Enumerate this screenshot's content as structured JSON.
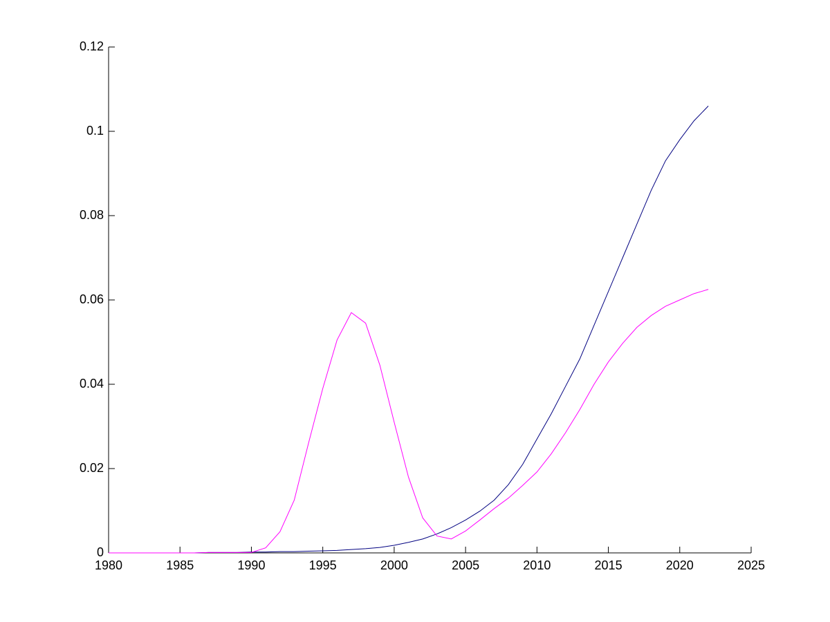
{
  "chart_data": {
    "type": "line",
    "x": [
      1980,
      1981,
      1982,
      1983,
      1984,
      1985,
      1986,
      1987,
      1988,
      1989,
      1990,
      1991,
      1992,
      1993,
      1994,
      1995,
      1996,
      1997,
      1998,
      1999,
      2000,
      2001,
      2002,
      2003,
      2004,
      2005,
      2006,
      2007,
      2008,
      2009,
      2010,
      2011,
      2012,
      2013,
      2014,
      2015,
      2016,
      2017,
      2018,
      2019,
      2020,
      2021,
      2022
    ],
    "series": [
      {
        "color": "#000080",
        "values": [
          0,
          0,
          0,
          0,
          0,
          0,
          0,
          0.0001,
          0.0001,
          0.0001,
          0.0002,
          0.0002,
          0.0003,
          0.0003,
          0.0004,
          0.0005,
          0.0006,
          0.0008,
          0.001,
          0.0013,
          0.0018,
          0.0025,
          0.0033,
          0.0045,
          0.006,
          0.0078,
          0.0099,
          0.0125,
          0.0162,
          0.021,
          0.027,
          0.033,
          0.0395,
          0.046,
          0.054,
          0.062,
          0.07,
          0.078,
          0.086,
          0.093,
          0.098,
          0.1025,
          0.106
        ]
      },
      {
        "color": "#ff00ff",
        "values": [
          0,
          0,
          0,
          0,
          0,
          0,
          0,
          0.0001,
          0.0001,
          0.0001,
          0.0001,
          0.0012,
          0.005,
          0.0125,
          0.026,
          0.039,
          0.0505,
          0.057,
          0.0545,
          0.0445,
          0.031,
          0.018,
          0.0083,
          0.004,
          0.0033,
          0.0052,
          0.0078,
          0.0105,
          0.013,
          0.016,
          0.0192,
          0.0235,
          0.0285,
          0.034,
          0.04,
          0.0453,
          0.0497,
          0.0535,
          0.0563,
          0.0585,
          0.06,
          0.0615,
          0.0625
        ]
      }
    ],
    "xlim": [
      1980,
      2025
    ],
    "xticks": [
      1980,
      1985,
      1990,
      1995,
      2000,
      2005,
      2010,
      2015,
      2020,
      2025
    ],
    "ylim": [
      0,
      0.12
    ],
    "yticks": [
      0,
      0.02,
      0.04,
      0.06,
      0.08,
      0.1,
      0.12
    ]
  }
}
